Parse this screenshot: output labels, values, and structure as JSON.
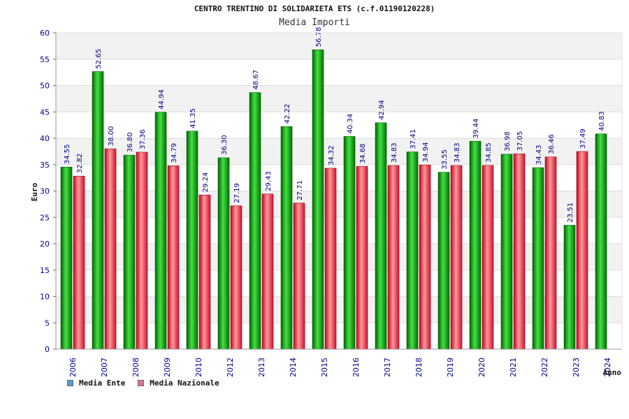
{
  "chart_data": {
    "type": "bar",
    "title": "CENTRO TRENTINO DI SOLIDARIETA ETS (c.f.01190120228)",
    "subtitle": "Media Importi",
    "xlabel": "Anno",
    "ylabel": "Euro",
    "ylim": [
      0,
      60
    ],
    "yticks": [
      0,
      5,
      10,
      15,
      20,
      25,
      30,
      35,
      40,
      45,
      50,
      55,
      60
    ],
    "categories": [
      "2006",
      "2007",
      "2008",
      "2009",
      "2010",
      "2012",
      "2013",
      "2014",
      "2015",
      "2016",
      "2017",
      "2018",
      "2019",
      "2020",
      "2021",
      "2022",
      "2023",
      "2024"
    ],
    "series": [
      {
        "name": "Media Ente",
        "values": [
          34.55,
          52.65,
          36.8,
          44.94,
          41.35,
          36.3,
          48.67,
          42.22,
          56.78,
          40.34,
          42.94,
          37.41,
          33.55,
          39.44,
          36.98,
          34.43,
          23.51,
          40.83
        ],
        "labels": [
          "34.55",
          "52.65",
          "36.80",
          "44.94",
          "41.35",
          "36.30",
          "48.67",
          "42.22",
          "56.78",
          "40.34",
          "42.94",
          "37.41",
          "33.55",
          "39.44",
          "36.98",
          "34.43",
          "23.51",
          "40.83"
        ]
      },
      {
        "name": "Media Nazionale",
        "values": [
          32.82,
          38.0,
          37.36,
          34.79,
          29.24,
          27.19,
          29.43,
          27.71,
          34.32,
          34.68,
          34.83,
          34.94,
          34.83,
          34.85,
          37.05,
          36.46,
          37.49,
          null
        ],
        "labels": [
          "32.82",
          "38.00",
          "37.36",
          "34.79",
          "29.24",
          "27.19",
          "29.43",
          "27.71",
          "34.32",
          "34.68",
          "34.83",
          "34.94",
          "34.83",
          "34.85",
          "37.05",
          "36.46",
          "37.49",
          ""
        ]
      }
    ],
    "legend_position": "bottom-left",
    "grid": true
  },
  "legend": {
    "items": [
      {
        "label": "Media Ente",
        "color": "#5b9bd5"
      },
      {
        "label": "Media Nazionale",
        "color": "#d9739a"
      }
    ]
  },
  "colors": {
    "ente_dark": "#007a00",
    "ente_light": "#3adb3a",
    "naz_dark": "#c8102e",
    "naz_light": "#ff9090",
    "axis_text": "#00008b",
    "label_text": "#000080"
  }
}
